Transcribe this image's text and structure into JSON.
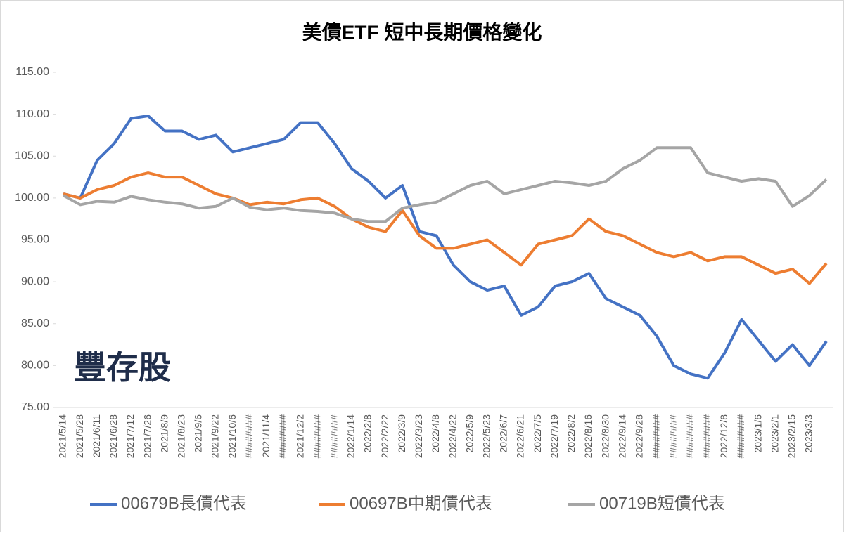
{
  "chart_data": {
    "type": "line",
    "title": "美債ETF 短中長期價格變化",
    "watermark": "豐存股",
    "categories": [
      "2021/5/14",
      "2021/5/28",
      "2021/6/11",
      "2021/6/28",
      "2021/7/12",
      "2021/7/26",
      "2021/8/9",
      "2021/8/23",
      "2021/9/6",
      "2021/9/22",
      "2021/10/6",
      "########",
      "2021/11/4",
      "########",
      "2021/12/2",
      "########",
      "########",
      "2022/1/14",
      "2022/2/8",
      "2022/2/22",
      "2022/3/9",
      "2022/3/23",
      "2022/4/8",
      "2022/4/22",
      "2022/5/9",
      "2022/5/23",
      "2022/6/7",
      "2022/6/21",
      "2022/7/5",
      "2022/7/19",
      "2022/8/2",
      "2022/8/16",
      "2022/8/30",
      "2022/9/14",
      "2022/9/28",
      "########",
      "########",
      "########",
      "########",
      "2022/12/8",
      "########",
      "2023/1/6",
      "2023/2/1",
      "2023/2/15",
      "2023/3/3",
      null
    ],
    "series": [
      {
        "name": "00679B長債代表",
        "color": "#4472c4",
        "values": [
          100.5,
          100.0,
          104.5,
          106.5,
          109.5,
          109.8,
          108.0,
          108.0,
          107.0,
          107.5,
          105.5,
          106.0,
          106.5,
          107.0,
          109.0,
          109.0,
          106.5,
          103.5,
          102.0,
          100.0,
          101.5,
          96.0,
          95.5,
          92.0,
          90.0,
          89.0,
          89.5,
          86.0,
          87.0,
          89.5,
          90.0,
          91.0,
          88.0,
          87.0,
          86.0,
          83.5,
          80.0,
          79.0,
          78.5,
          81.5,
          85.5,
          83.0,
          80.5,
          82.5,
          80.0,
          82.9
        ]
      },
      {
        "name": "00697B中期債代表",
        "color": "#ed7d31",
        "values": [
          100.5,
          100.0,
          101.0,
          101.5,
          102.5,
          103.0,
          102.5,
          102.5,
          101.5,
          100.5,
          100.0,
          99.2,
          99.5,
          99.3,
          99.8,
          100.0,
          99.0,
          97.5,
          96.5,
          96.0,
          98.5,
          95.5,
          94.0,
          94.0,
          94.5,
          95.0,
          93.5,
          92.0,
          94.5,
          95.0,
          95.5,
          97.5,
          96.0,
          95.5,
          94.5,
          93.5,
          93.0,
          93.5,
          92.5,
          93.0,
          93.0,
          92.0,
          91.0,
          91.5,
          89.8,
          92.2
        ]
      },
      {
        "name": "00719B短債代表",
        "color": "#a5a5a5",
        "values": [
          100.3,
          99.2,
          99.6,
          99.5,
          100.2,
          99.8,
          99.5,
          99.3,
          98.8,
          99.0,
          100.0,
          98.9,
          98.6,
          98.8,
          98.5,
          98.4,
          98.2,
          97.5,
          97.2,
          97.2,
          98.8,
          99.2,
          99.5,
          100.5,
          101.5,
          102.0,
          100.5,
          101.0,
          101.5,
          102.0,
          101.8,
          101.5,
          102.0,
          103.5,
          104.5,
          106.0,
          106.0,
          106.0,
          103.0,
          102.5,
          102.0,
          102.3,
          102.0,
          99.0,
          100.3,
          102.2
        ]
      }
    ],
    "ylim": [
      75,
      115
    ],
    "yticks": [
      {
        "value": 75,
        "label": "75.00"
      },
      {
        "value": 80,
        "label": "80.00"
      },
      {
        "value": 85,
        "label": "85.00"
      },
      {
        "value": 90,
        "label": "90.00"
      },
      {
        "value": 95,
        "label": "95.00"
      },
      {
        "value": 100,
        "label": "100.00"
      },
      {
        "value": 105,
        "label": "105.00"
      },
      {
        "value": 110,
        "label": "110.00"
      },
      {
        "value": 115,
        "label": "115.00"
      }
    ],
    "legend": "bottom"
  }
}
